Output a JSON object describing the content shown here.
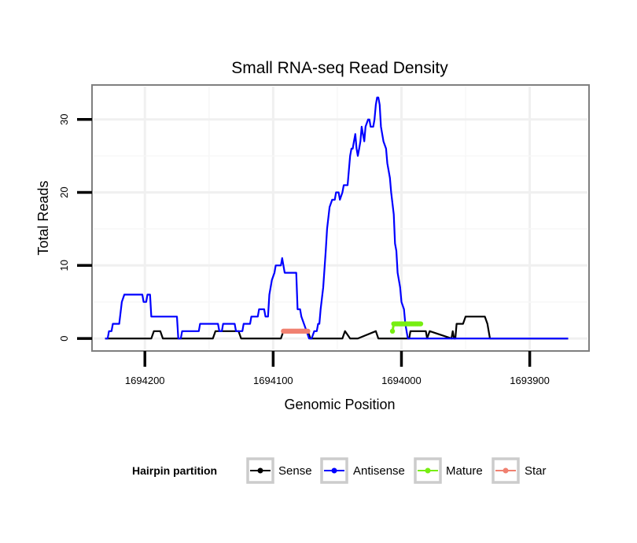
{
  "chart_data": {
    "type": "line",
    "title": "Small RNA-seq Read Density",
    "xlabel": "Genomic Position",
    "ylabel": "Total Reads",
    "x_reversed": true,
    "xlim": [
      1694240,
      1693855
    ],
    "ylim": [
      -1.5,
      34.5
    ],
    "x_ticks": [
      1694200,
      1694100,
      1694000,
      1693900
    ],
    "x_tick_labels": [
      "1694200",
      "1694100",
      "1694000",
      "1693900"
    ],
    "y_ticks": [
      0,
      10,
      20,
      30
    ],
    "y_tick_labels": [
      "0",
      "10",
      "20",
      "30"
    ],
    "grid": true,
    "legend": {
      "title": "Hairpin partition",
      "position": "bottom"
    },
    "series": [
      {
        "name": "Sense",
        "color": "#000000",
        "points": [
          [
            1694231,
            0
          ],
          [
            1694195,
            0
          ],
          [
            1694193,
            1
          ],
          [
            1694190,
            1
          ],
          [
            1694188,
            1
          ],
          [
            1694186,
            0
          ],
          [
            1694147,
            0
          ],
          [
            1694145,
            1
          ],
          [
            1694127,
            1
          ],
          [
            1694125,
            0
          ],
          [
            1694094,
            0
          ],
          [
            1694092,
            1
          ],
          [
            1694073,
            1
          ],
          [
            1694071,
            0
          ],
          [
            1694046,
            0
          ],
          [
            1694044,
            1
          ],
          [
            1694020,
            1
          ],
          [
            1694018,
            0
          ],
          [
            1693980,
            0
          ],
          [
            1693978,
            1
          ],
          [
            1693960,
            1
          ],
          [
            1693958,
            0
          ],
          [
            1693994,
            0
          ],
          [
            1693993,
            1
          ],
          [
            1693981,
            1
          ],
          [
            1693980,
            0
          ],
          [
            1694040,
            0
          ],
          [
            1694034,
            0
          ],
          [
            1693961,
            0
          ],
          [
            1693959,
            0
          ],
          [
            1693957,
            2
          ],
          [
            1693952,
            2
          ],
          [
            1693950,
            3
          ],
          [
            1693935,
            3
          ],
          [
            1693933,
            2
          ],
          [
            1693931,
            0
          ],
          [
            1693870,
            0
          ]
        ]
      },
      {
        "name": "Antisense",
        "color": "#0000ff",
        "points": [
          [
            1694231,
            0
          ],
          [
            1694229,
            0
          ],
          [
            1694228,
            1
          ],
          [
            1694226,
            1
          ],
          [
            1694225,
            2
          ],
          [
            1694220,
            2
          ],
          [
            1694218,
            5
          ],
          [
            1694216,
            6
          ],
          [
            1694202,
            6
          ],
          [
            1694201,
            5
          ],
          [
            1694199,
            5
          ],
          [
            1694198,
            6
          ],
          [
            1694196,
            6
          ],
          [
            1694195,
            3
          ],
          [
            1694175,
            3
          ],
          [
            1694174,
            0
          ],
          [
            1694172,
            0
          ],
          [
            1694171,
            1
          ],
          [
            1694158,
            1
          ],
          [
            1694157,
            2
          ],
          [
            1694143,
            2
          ],
          [
            1694142,
            1
          ],
          [
            1694140,
            1
          ],
          [
            1694139,
            2
          ],
          [
            1694130,
            2
          ],
          [
            1694129,
            1
          ],
          [
            1694124,
            1
          ],
          [
            1694123,
            2
          ],
          [
            1694118,
            2
          ],
          [
            1694117,
            3
          ],
          [
            1694112,
            3
          ],
          [
            1694111,
            4
          ],
          [
            1694107,
            4
          ],
          [
            1694106,
            3
          ],
          [
            1694104,
            3
          ],
          [
            1694103,
            6
          ],
          [
            1694101,
            8
          ],
          [
            1694099,
            9
          ],
          [
            1694098,
            10
          ],
          [
            1694094,
            10
          ],
          [
            1694093,
            11
          ],
          [
            1694092,
            10
          ],
          [
            1694091,
            9
          ],
          [
            1694082,
            9
          ],
          [
            1694081,
            4
          ],
          [
            1694079,
            4
          ],
          [
            1694078,
            3
          ],
          [
            1694076,
            2
          ],
          [
            1694074,
            1
          ],
          [
            1694072,
            0
          ],
          [
            1694070,
            0
          ],
          [
            1694068,
            1
          ],
          [
            1694066,
            1
          ],
          [
            1694065,
            2
          ],
          [
            1694064,
            2
          ],
          [
            1694063,
            4
          ],
          [
            1694061,
            7
          ],
          [
            1694059,
            12
          ],
          [
            1694058,
            15
          ],
          [
            1694056,
            18
          ],
          [
            1694054,
            19
          ],
          [
            1694052,
            19
          ],
          [
            1694051,
            20
          ],
          [
            1694049,
            20
          ],
          [
            1694048,
            19
          ],
          [
            1694046,
            20
          ],
          [
            1694045,
            21
          ],
          [
            1694042,
            21
          ],
          [
            1694041,
            23
          ],
          [
            1694040,
            25
          ],
          [
            1694039,
            26
          ],
          [
            1694038,
            26
          ],
          [
            1694037,
            27
          ],
          [
            1694036,
            28
          ],
          [
            1694035,
            26
          ],
          [
            1694034,
            25
          ],
          [
            1694033,
            26
          ],
          [
            1694032,
            27
          ],
          [
            1694031,
            29
          ],
          [
            1694030,
            28
          ],
          [
            1694029,
            27
          ],
          [
            1694028,
            29
          ],
          [
            1694026,
            30
          ],
          [
            1694025,
            30
          ],
          [
            1694024,
            29
          ],
          [
            1694022,
            29
          ],
          [
            1694021,
            30
          ],
          [
            1694020,
            32
          ],
          [
            1694019,
            33
          ],
          [
            1694018,
            33
          ],
          [
            1694017,
            32
          ],
          [
            1694016,
            29
          ],
          [
            1694014,
            27
          ],
          [
            1694012,
            26
          ],
          [
            1694011,
            24
          ],
          [
            1694009,
            22
          ],
          [
            1694008,
            20
          ],
          [
            1694006,
            17
          ],
          [
            1694005,
            13
          ],
          [
            1694004,
            12
          ],
          [
            1694003,
            9
          ],
          [
            1694001,
            7
          ],
          [
            1694000,
            5
          ],
          [
            1693998,
            4
          ],
          [
            1693997,
            2
          ],
          [
            1693995,
            0
          ],
          [
            1693870,
            0
          ]
        ]
      },
      {
        "name": "Mature",
        "color": "#77ee11",
        "points": [
          [
            1694007,
            1
          ],
          [
            1694006,
            2
          ],
          [
            1694005,
            2
          ],
          [
            1694004,
            2
          ],
          [
            1694003,
            2
          ],
          [
            1694002,
            2
          ],
          [
            1694001,
            2
          ],
          [
            1694000,
            2
          ],
          [
            1693999,
            2
          ],
          [
            1693998,
            2
          ],
          [
            1693997,
            2
          ],
          [
            1693996,
            2
          ],
          [
            1693995,
            2
          ],
          [
            1693994,
            2
          ],
          [
            1693993,
            2
          ],
          [
            1693992,
            2
          ],
          [
            1693991,
            2
          ],
          [
            1693990,
            2
          ],
          [
            1693989,
            2
          ],
          [
            1693988,
            2
          ],
          [
            1693987,
            2
          ],
          [
            1693986,
            2
          ],
          [
            1693985,
            2
          ]
        ]
      },
      {
        "name": "Star",
        "color": "#f08070",
        "points": [
          [
            1694092,
            1
          ],
          [
            1694091,
            1
          ],
          [
            1694090,
            1
          ],
          [
            1694089,
            1
          ],
          [
            1694088,
            1
          ],
          [
            1694087,
            1
          ],
          [
            1694086,
            1
          ],
          [
            1694085,
            1
          ],
          [
            1694084,
            1
          ],
          [
            1694083,
            1
          ],
          [
            1694082,
            1
          ],
          [
            1694081,
            1
          ],
          [
            1694080,
            1
          ],
          [
            1694079,
            1
          ],
          [
            1694078,
            1
          ],
          [
            1694077,
            1
          ],
          [
            1694076,
            1
          ],
          [
            1694075,
            1
          ],
          [
            1694074,
            1
          ],
          [
            1694073,
            1
          ]
        ]
      }
    ]
  }
}
